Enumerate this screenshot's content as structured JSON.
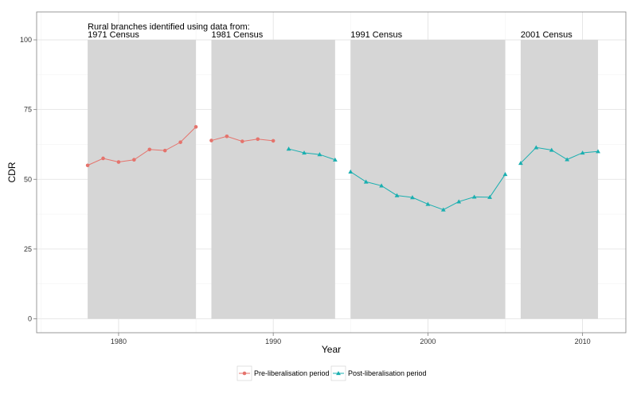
{
  "chart_data": {
    "type": "line",
    "xlabel": "Year",
    "ylabel": "CDR",
    "xlim": [
      1974.7,
      2012.8
    ],
    "ylim": [
      -5,
      110
    ],
    "x_ticks": [
      1980,
      1990,
      2000,
      2010
    ],
    "y_ticks": [
      0,
      25,
      50,
      75,
      100
    ],
    "grid": true,
    "legend_position": "bottom",
    "colors": {
      "pre": "#E5736C",
      "post": "#1AAFB0",
      "band": "#D6D6D6"
    },
    "annotation_header": "Rural branches identified using data from:",
    "census_periods": [
      {
        "label": "1971 Census",
        "x_start": 1978,
        "x_end": 1985
      },
      {
        "label": "1981 Census",
        "x_start": 1986,
        "x_end": 1994
      },
      {
        "label": "1991 Census",
        "x_start": 1995,
        "x_end": 2005
      },
      {
        "label": "2001 Census",
        "x_start": 2006,
        "x_end": 2011
      }
    ],
    "series": [
      {
        "name": "Pre-liberalisation period",
        "color_key": "pre",
        "marker": "circle",
        "segments": [
          {
            "x": [
              1978,
              1979,
              1980,
              1981,
              1982,
              1983,
              1984,
              1985
            ],
            "y": [
              55.0,
              57.5,
              56.2,
              57.0,
              60.7,
              60.3,
              63.3,
              68.8
            ]
          },
          {
            "x": [
              1986,
              1987,
              1988,
              1989,
              1990
            ],
            "y": [
              63.9,
              65.4,
              63.6,
              64.4,
              63.8
            ]
          }
        ]
      },
      {
        "name": "Post-liberalisation period",
        "color_key": "post",
        "marker": "triangle",
        "segments": [
          {
            "x": [
              1991,
              1992,
              1993,
              1994
            ],
            "y": [
              60.9,
              59.5,
              58.9,
              57.0
            ]
          },
          {
            "x": [
              1995,
              1996,
              1997,
              1998,
              1999,
              2000,
              2001,
              2002,
              2003,
              2004,
              2005
            ],
            "y": [
              52.7,
              49.1,
              47.7,
              44.2,
              43.5,
              41.1,
              39.1,
              42.0,
              43.7,
              43.6,
              51.8
            ]
          },
          {
            "x": [
              2006,
              2007,
              2008,
              2009,
              2010,
              2011
            ],
            "y": [
              55.8,
              61.4,
              60.5,
              57.1,
              59.5,
              60.0
            ]
          }
        ]
      }
    ]
  }
}
